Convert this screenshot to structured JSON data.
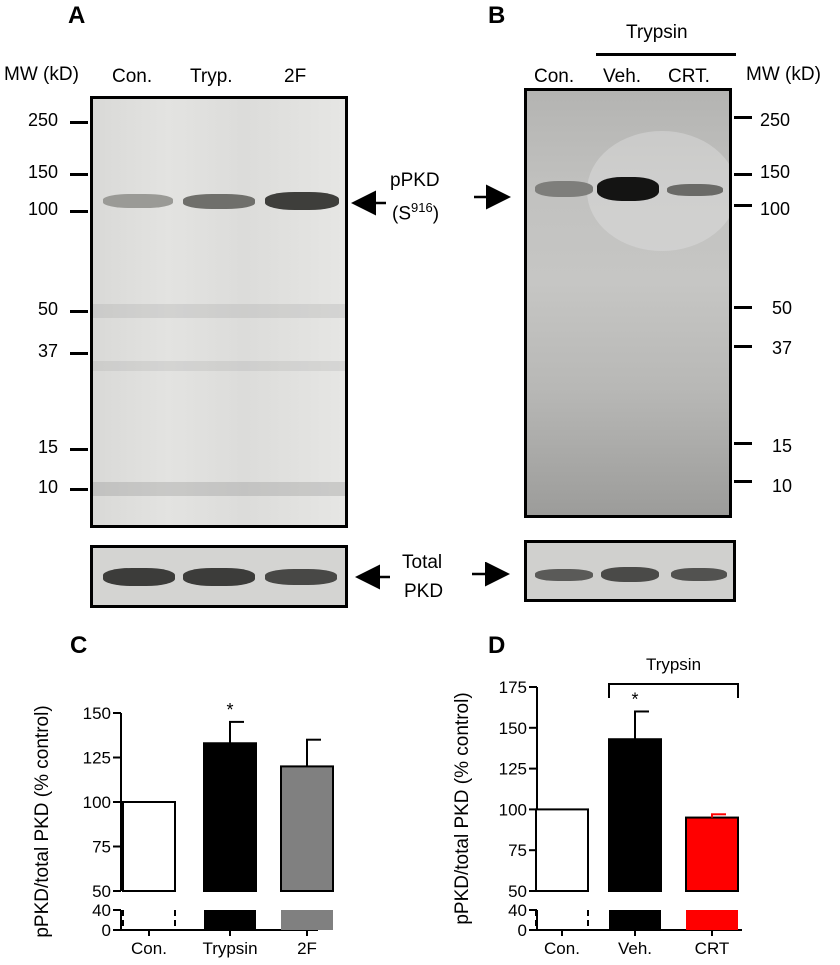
{
  "panel_a": {
    "label": "A",
    "mw_title": "MW (kD)",
    "lanes": [
      "Con.",
      "Tryp.",
      "2F"
    ],
    "mw_markers": [
      "250",
      "150",
      "100",
      "50",
      "37",
      "15",
      "10"
    ]
  },
  "panel_b": {
    "label": "B",
    "mw_title": "MW (kD)",
    "group_label": "Trypsin",
    "lanes": [
      "Con.",
      "Veh.",
      "CRT."
    ],
    "mw_markers": [
      "250",
      "150",
      "100",
      "50",
      "37",
      "15",
      "10"
    ]
  },
  "middle": {
    "ppkd_line1": "pPKD",
    "ppkd_line2_base": "(S",
    "ppkd_line2_sup": "916",
    "ppkd_line2_end": ")",
    "total_line1": "Total",
    "total_line2": "PKD"
  },
  "chart_data": [
    {
      "panel": "C",
      "type": "bar",
      "ylabel": "pPKD/total PKD (% control)",
      "categories": [
        "Con.",
        "Trypsin",
        "2F"
      ],
      "values": [
        100,
        133,
        120
      ],
      "errors": [
        0,
        12,
        15
      ],
      "colors": [
        "#ffffff",
        "#000000",
        "#808080"
      ],
      "significance": [
        "",
        "*",
        ""
      ],
      "ylim": [
        0,
        150
      ],
      "axis_break": [
        40,
        50
      ],
      "upper_ticks": [
        "50",
        "75",
        "100",
        "125",
        "150"
      ],
      "lower_ticks": [
        "0",
        "40"
      ]
    },
    {
      "panel": "D",
      "type": "bar",
      "ylabel": "pPKD/total PKD (% control)",
      "group_label": "Trypsin",
      "categories": [
        "Con.",
        "Veh.",
        "CRT"
      ],
      "values": [
        100,
        143,
        95
      ],
      "errors": [
        0,
        17,
        2
      ],
      "colors": [
        "#ffffff",
        "#000000",
        "#ff0000"
      ],
      "significance": [
        "",
        "*",
        ""
      ],
      "ylim": [
        0,
        175
      ],
      "axis_break": [
        40,
        50
      ],
      "upper_ticks": [
        "50",
        "75",
        "100",
        "125",
        "150",
        "175"
      ],
      "lower_ticks": [
        "0",
        "40"
      ]
    }
  ]
}
